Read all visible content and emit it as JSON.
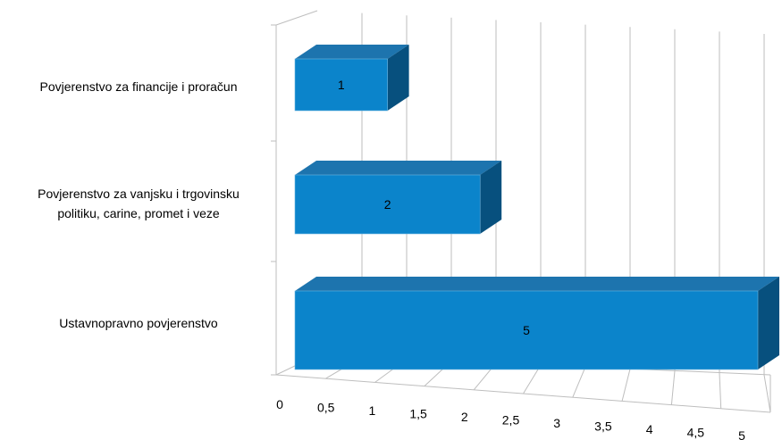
{
  "chart_data": {
    "type": "bar",
    "orientation": "horizontal",
    "style": "3d",
    "categories": [
      "Povjerenstvo za financije i proračun",
      "Povjerenstvo za vanjsku i trgovinsku politiku, carine, promet i veze",
      "Ustavnopravno povjerenstvo"
    ],
    "category_label_lines": [
      [
        "Povjerenstvo za financije i proračun"
      ],
      [
        "Povjerenstvo za vanjsku i trgovinsku",
        "politiku, carine, promet i veze"
      ],
      [
        "Ustavnopravno povjerenstvo"
      ]
    ],
    "values": [
      1,
      2,
      5
    ],
    "data_labels": [
      "1",
      "2",
      "5"
    ],
    "x_ticks": [
      "0",
      "0,5",
      "1",
      "1,5",
      "2",
      "2,5",
      "3",
      "3,5",
      "4",
      "4,5",
      "5"
    ],
    "xlim": [
      0,
      5
    ],
    "grid": true,
    "legend": "none",
    "title": "",
    "xlabel": "",
    "ylabel": "",
    "colors": {
      "bar_front": "#0B84CB",
      "bar_top": "#1D74AE",
      "bar_side": "#07507E",
      "grid": "#BEBEBE",
      "bar_edge": "#6FB6E0"
    }
  }
}
